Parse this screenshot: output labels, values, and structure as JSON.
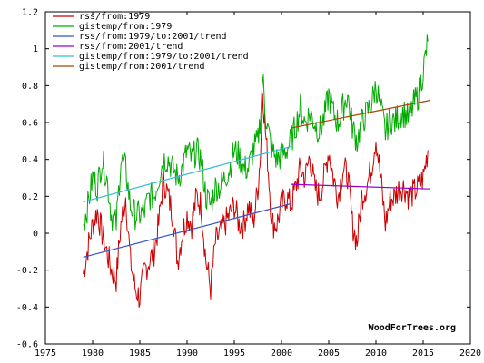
{
  "chart_data": {
    "type": "line",
    "xlim": [
      1975,
      2020
    ],
    "ylim": [
      -0.6,
      1.2
    ],
    "xticks": [
      "1975",
      "1980",
      "1985",
      "1990",
      "1995",
      "2000",
      "2005",
      "2010",
      "2015",
      "2020"
    ],
    "yticks": [
      "1.2",
      "1",
      "0.8",
      "0.6",
      "0.4",
      "0.2",
      "0",
      "-0.2",
      "-0.4",
      "-0.6"
    ],
    "grid": false,
    "legend_position": "top-left",
    "watermark": "WoodForTrees.org",
    "series": [
      {
        "name": "rss/from:1979",
        "color": "#cc0000",
        "style": "monthly",
        "x": [
          1979.0,
          1979.5,
          1980.0,
          1980.5,
          1981.0,
          1981.5,
          1982.0,
          1982.5,
          1983.0,
          1983.5,
          1984.0,
          1984.5,
          1985.0,
          1985.5,
          1986.0,
          1986.5,
          1987.0,
          1987.5,
          1988.0,
          1988.5,
          1989.0,
          1989.5,
          1990.0,
          1990.5,
          1991.0,
          1991.5,
          1992.0,
          1992.5,
          1993.0,
          1993.5,
          1994.0,
          1994.5,
          1995.0,
          1995.5,
          1996.0,
          1996.5,
          1997.0,
          1997.5,
          1997.8,
          1998.0,
          1998.3,
          1998.6,
          1999.0,
          1999.5,
          2000.0,
          2000.5,
          2001.0,
          2001.5,
          2002.0,
          2002.5,
          2003.0,
          2003.5,
          2004.0,
          2004.5,
          2005.0,
          2005.5,
          2006.0,
          2006.5,
          2007.0,
          2007.5,
          2008.0,
          2008.5,
          2009.0,
          2009.5,
          2010.0,
          2010.5,
          2011.0,
          2011.5,
          2012.0,
          2012.5,
          2013.0,
          2013.5,
          2014.0,
          2014.5,
          2015.0,
          2015.5
        ],
        "values": [
          -0.22,
          -0.08,
          0.05,
          0.12,
          0.0,
          -0.1,
          -0.2,
          -0.25,
          0.05,
          0.2,
          -0.15,
          -0.3,
          -0.35,
          -0.2,
          -0.15,
          -0.1,
          0.05,
          0.3,
          0.2,
          0.1,
          -0.15,
          0.0,
          0.1,
          0.05,
          0.2,
          0.15,
          -0.15,
          -0.3,
          -0.05,
          0.0,
          0.05,
          0.1,
          0.15,
          0.05,
          0.05,
          0.15,
          0.05,
          0.25,
          0.45,
          0.78,
          0.55,
          0.35,
          0.05,
          0.05,
          0.15,
          0.2,
          0.15,
          0.25,
          0.35,
          0.3,
          0.42,
          0.25,
          0.2,
          0.3,
          0.45,
          0.3,
          0.2,
          0.35,
          0.32,
          0.05,
          -0.05,
          0.2,
          0.25,
          0.35,
          0.52,
          0.3,
          0.05,
          0.18,
          0.2,
          0.25,
          0.25,
          0.2,
          0.22,
          0.25,
          0.3,
          0.45
        ]
      },
      {
        "name": "gistemp/from:1979",
        "color": "#00aa00",
        "style": "monthly",
        "x": [
          1979.0,
          1979.5,
          1980.0,
          1980.5,
          1981.0,
          1981.5,
          1982.0,
          1982.5,
          1983.0,
          1983.5,
          1984.0,
          1984.5,
          1985.0,
          1985.5,
          1986.0,
          1986.5,
          1987.0,
          1987.5,
          1988.0,
          1988.5,
          1989.0,
          1989.5,
          1990.0,
          1990.5,
          1991.0,
          1991.5,
          1992.0,
          1992.5,
          1993.0,
          1993.5,
          1994.0,
          1994.5,
          1995.0,
          1995.5,
          1996.0,
          1996.5,
          1997.0,
          1997.5,
          1997.8,
          1998.0,
          1998.3,
          1998.6,
          1999.0,
          1999.5,
          2000.0,
          2000.5,
          2001.0,
          2001.5,
          2002.0,
          2002.5,
          2003.0,
          2003.5,
          2004.0,
          2004.5,
          2005.0,
          2005.5,
          2006.0,
          2006.5,
          2007.0,
          2007.5,
          2008.0,
          2008.5,
          2009.0,
          2009.5,
          2010.0,
          2010.5,
          2011.0,
          2011.5,
          2012.0,
          2012.5,
          2013.0,
          2013.5,
          2014.0,
          2014.5,
          2015.0,
          2015.5
        ],
        "values": [
          0.05,
          0.15,
          0.3,
          0.25,
          0.4,
          0.3,
          0.1,
          0.05,
          0.4,
          0.35,
          0.15,
          0.1,
          0.1,
          0.12,
          0.2,
          0.2,
          0.3,
          0.4,
          0.4,
          0.35,
          0.3,
          0.35,
          0.45,
          0.4,
          0.45,
          0.4,
          0.2,
          0.15,
          0.25,
          0.25,
          0.3,
          0.35,
          0.45,
          0.42,
          0.35,
          0.35,
          0.45,
          0.5,
          0.65,
          0.85,
          0.65,
          0.55,
          0.45,
          0.4,
          0.42,
          0.45,
          0.5,
          0.58,
          0.68,
          0.6,
          0.65,
          0.6,
          0.55,
          0.62,
          0.75,
          0.65,
          0.6,
          0.68,
          0.75,
          0.58,
          0.5,
          0.6,
          0.65,
          0.7,
          0.8,
          0.68,
          0.55,
          0.62,
          0.6,
          0.65,
          0.65,
          0.62,
          0.7,
          0.75,
          0.88,
          1.04
        ]
      },
      {
        "name": "rss/from:1979/to:2001/trend",
        "color": "#3355cc",
        "style": "trend",
        "x": [
          1979.0,
          2001.0
        ],
        "values": [
          -0.13,
          0.16
        ]
      },
      {
        "name": "rss/from:2001/trend",
        "color": "#9900cc",
        "style": "trend",
        "x": [
          2001.0,
          2015.7
        ],
        "values": [
          0.265,
          0.24
        ]
      },
      {
        "name": "gistemp/from:1979/to:2001/trend",
        "color": "#33bbdd",
        "style": "trend",
        "x": [
          1979.0,
          2001.0
        ],
        "values": [
          0.17,
          0.47
        ]
      },
      {
        "name": "gistemp/from:2001/trend",
        "color": "#aa4400",
        "style": "trend",
        "x": [
          2001.0,
          2015.7
        ],
        "values": [
          0.57,
          0.72
        ]
      }
    ]
  }
}
